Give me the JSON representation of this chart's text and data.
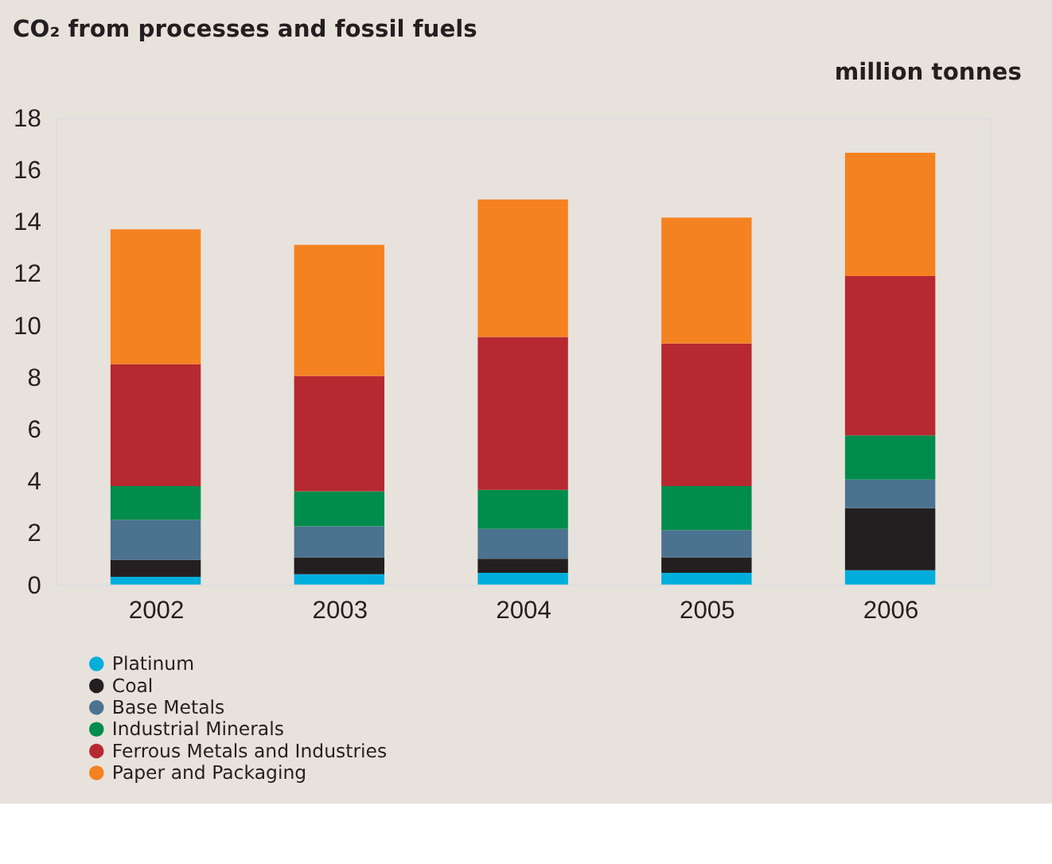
{
  "chart_data": {
    "type": "bar",
    "title": "CO₂ from processes and fossil fuels",
    "ylabel": "million tonnes",
    "categories": [
      "2002",
      "2003",
      "2004",
      "2005",
      "2006"
    ],
    "stacked": true,
    "series": [
      {
        "name": "Platinum",
        "color": "#00aedb",
        "values": [
          0.3,
          0.4,
          0.45,
          0.45,
          0.55
        ]
      },
      {
        "name": "Coal",
        "color": "#231f20",
        "values": [
          0.65,
          0.65,
          0.55,
          0.6,
          2.4
        ]
      },
      {
        "name": "Base Metals",
        "color": "#4b728f",
        "values": [
          1.55,
          1.2,
          1.15,
          1.05,
          1.1
        ]
      },
      {
        "name": "Industrial Minerals",
        "color": "#008c4c",
        "values": [
          1.3,
          1.35,
          1.5,
          1.7,
          1.7
        ]
      },
      {
        "name": "Ferrous Metals and Industries",
        "color": "#b72930",
        "values": [
          4.7,
          4.45,
          5.9,
          5.5,
          6.15
        ]
      },
      {
        "name": "Paper and Packaging",
        "color": "#f58220",
        "values": [
          5.2,
          5.05,
          5.3,
          4.85,
          4.75
        ]
      }
    ],
    "ylim": [
      0,
      18
    ],
    "yticks": [
      0,
      2,
      4,
      6,
      8,
      10,
      12,
      14,
      16,
      18
    ],
    "grid": false,
    "legend": "bottom left"
  }
}
